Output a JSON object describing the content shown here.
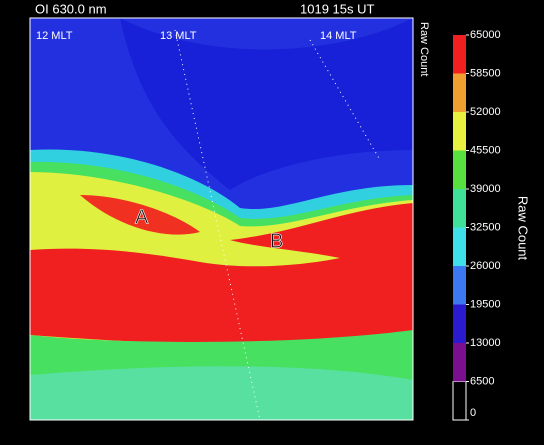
{
  "chart_data": {
    "type": "heatmap",
    "title": "OI 630.0 nm",
    "time": "1019 15s UT",
    "image_label": "Raw Count",
    "annotations": [
      "12 MLT",
      "13 MLT",
      "14 MLT",
      "A",
      "B"
    ],
    "colorbar": {
      "label": "Raw Count",
      "lim": [
        0,
        65000
      ],
      "ticks": [
        0,
        6500,
        13000,
        19500,
        26000,
        32500,
        39000,
        45500,
        52000,
        58500,
        65000
      ],
      "colors": [
        "#000000",
        "#7a1090",
        "#2a1ad0",
        "#3c78f0",
        "#40e0e8",
        "#40e098",
        "#58e040",
        "#e8f040",
        "#f0a030",
        "#f02020"
      ]
    }
  }
}
